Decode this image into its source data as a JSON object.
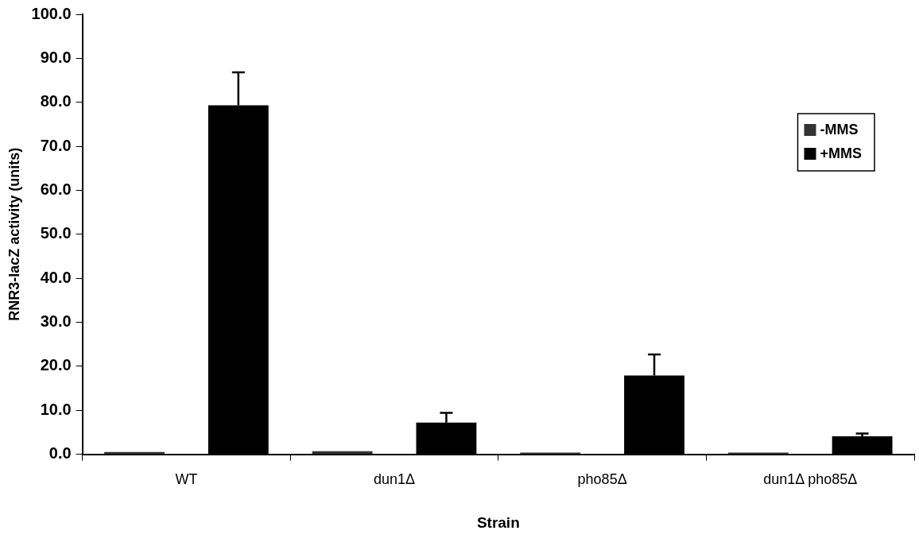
{
  "chart_data": {
    "type": "bar",
    "xlabel": "Strain",
    "ylabel": "RNR3-lacZ activity (units)",
    "categories": [
      "WT",
      "dun1Δ",
      "pho85Δ",
      "dun1Δ pho85Δ"
    ],
    "series": [
      {
        "name": "-MMS",
        "color": "#333333",
        "values": [
          0.5,
          0.7,
          0.4,
          0.4
        ]
      },
      {
        "name": "+MMS",
        "color": "#000000",
        "values": [
          79.3,
          7.2,
          17.9,
          4.1
        ],
        "errors": [
          [
            79.3,
            86.8
          ],
          [
            7.2,
            9.4
          ],
          [
            17.9,
            22.7
          ],
          [
            4.1,
            4.7
          ]
        ]
      }
    ],
    "ylim": [
      0,
      100
    ],
    "yticks": [
      {
        "value": 0,
        "label": "0.0"
      },
      {
        "value": 10,
        "label": "10.0"
      },
      {
        "value": 20,
        "label": "20.0"
      },
      {
        "value": 30,
        "label": "30.0"
      },
      {
        "value": 40,
        "label": "40.0"
      },
      {
        "value": 50,
        "label": "50.0"
      },
      {
        "value": 60,
        "label": "60.0"
      },
      {
        "value": 70,
        "label": "70.0"
      },
      {
        "value": 80,
        "label": "80.0"
      },
      {
        "value": 90,
        "label": "90.0"
      },
      {
        "value": 100,
        "label": "100.0"
      }
    ],
    "grid": false,
    "legend": "top right"
  }
}
